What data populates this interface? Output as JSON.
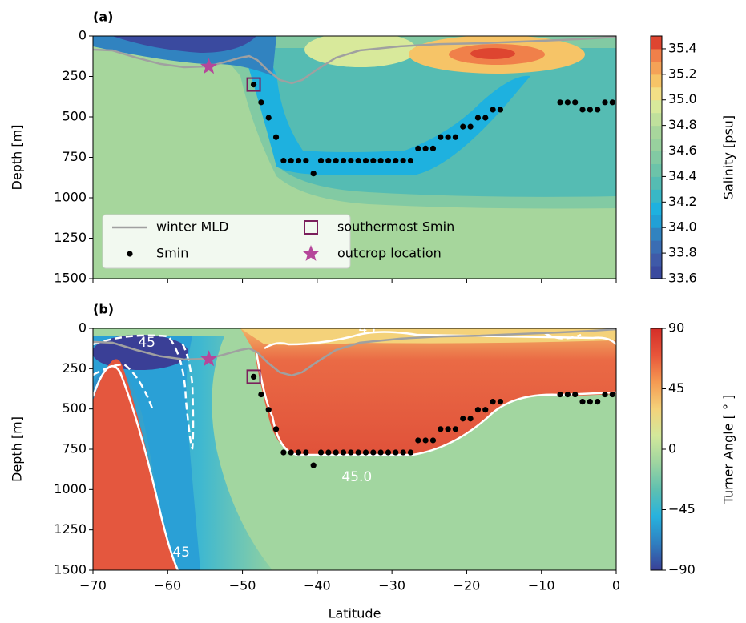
{
  "chart_data": [
    {
      "type": "contour",
      "panel_label": "(a)",
      "ylabel": "Depth [m]",
      "xlim": [
        -70,
        0
      ],
      "xticks": [
        -70,
        -60,
        -50,
        -40,
        -30,
        -20,
        -10,
        0
      ],
      "show_xtick_labels": false,
      "ylim": [
        0,
        1500
      ],
      "invert_y": true,
      "yticks": [
        0,
        250,
        500,
        750,
        1000,
        1250,
        1500
      ],
      "legend": "lower left",
      "colorbar": {
        "label": "Salinity [psu]",
        "lim": [
          33.6,
          35.5
        ],
        "discrete": true,
        "ticks": [
          33.6,
          33.8,
          {
            "value": 34.0,
            "label": "34.0"
          },
          34.2,
          34.4,
          34.6,
          34.8,
          {
            "value": 35.0,
            "label": "35.0"
          },
          35.2,
          35.4
        ],
        "colors": [
          "#3a4a9f",
          "#3f5aa8",
          "#3a6db3",
          "#3183c0",
          "#22a0d6",
          "#1eb1df",
          "#39b7c6",
          "#55bcb3",
          "#6cc3a9",
          "#82caa3",
          "#98d19e",
          "#a8d69c",
          "#c0e09c",
          "#d8e99b",
          "#f2df86",
          "#f6c467",
          "#f4a257",
          "#f0804a",
          "#de4530"
        ]
      },
      "series": [
        {
          "name": "winter MLD",
          "kind": "line",
          "color": "#a0a0a0",
          "x": [
            -70,
            -67.4,
            -64.2,
            -61.0,
            -57.8,
            -54.6,
            -52.5,
            -50.3,
            -49.1,
            -48.0,
            -46.6,
            -45.0,
            -43.4,
            -42.0,
            -40.2,
            -37.5,
            -34.3,
            -28.9,
            -23.6,
            -18.2,
            -12.9,
            -7.5,
            -3.2,
            0
          ],
          "values": [
            84,
            89,
            134,
            173,
            193,
            188,
            163,
            134,
            124,
            149,
            213,
            272,
            292,
            272,
            213,
            134,
            89,
            64,
            50,
            45,
            35,
            25,
            15,
            5
          ]
        },
        {
          "name": "Smin",
          "kind": "points",
          "color": "#000000",
          "x": [
            -48.5,
            -47.5,
            -46.5,
            -45.5,
            -44.5,
            -43.5,
            -42.5,
            -41.5,
            -40.5,
            -39.5,
            -38.5,
            -37.5,
            -36.5,
            -35.5,
            -34.5,
            -33.5,
            -32.5,
            -31.5,
            -30.5,
            -29.5,
            -28.5,
            -27.5,
            -26.5,
            -25.5,
            -24.5,
            -23.5,
            -22.5,
            -21.5,
            -20.5,
            -19.5,
            -18.5,
            -17.5,
            -16.5,
            -15.5,
            -7.5,
            -6.5,
            -5.5,
            -4.5,
            -3.5,
            -2.5,
            -1.5,
            -0.5
          ],
          "values": [
            300,
            410,
            505,
            625,
            770,
            770,
            770,
            770,
            850,
            770,
            770,
            770,
            770,
            770,
            770,
            770,
            770,
            770,
            770,
            770,
            770,
            770,
            695,
            695,
            695,
            625,
            625,
            625,
            560,
            560,
            505,
            505,
            455,
            455,
            410,
            410,
            410,
            455,
            455,
            455,
            410,
            410
          ]
        },
        {
          "name": "southermost Smin",
          "kind": "square",
          "color": "#7b1f5c",
          "x": [
            -48.5
          ],
          "values": [
            300
          ]
        },
        {
          "name": "outcrop location",
          "kind": "star",
          "color": "#b5479a",
          "x": [
            -54.5
          ],
          "values": [
            190
          ]
        }
      ]
    },
    {
      "type": "contour",
      "panel_label": "(b)",
      "ylabel": "Depth [m]",
      "xlabel": "Latitude",
      "xlim": [
        -70,
        0
      ],
      "xticks": [
        {
          "value": -70,
          "label": "−70"
        },
        {
          "value": -60,
          "label": "−60"
        },
        {
          "value": -50,
          "label": "−50"
        },
        {
          "value": -40,
          "label": "−40"
        },
        {
          "value": -30,
          "label": "−30"
        },
        {
          "value": -20,
          "label": "−20"
        },
        {
          "value": -10,
          "label": "−10"
        },
        0
      ],
      "show_xtick_labels": true,
      "ylim": [
        0,
        1500
      ],
      "invert_y": true,
      "yticks": [
        0,
        250,
        500,
        750,
        1000,
        1250,
        1500
      ],
      "colorbar": {
        "label": "Turner Angle [ ° ]",
        "lim": [
          -90,
          90
        ],
        "discrete": false,
        "ticks": [
          {
            "value": -90,
            "label": "−90"
          },
          {
            "value": -45,
            "label": "−45"
          },
          0,
          45,
          90
        ],
        "colors": [
          "#3a3f96",
          "#2f7fc0",
          "#27b2de",
          "#5fc0b0",
          "#9fd5a0",
          "#d3e89b",
          "#f4d27a",
          "#f59a52",
          "#e8553a",
          "#d42e28"
        ]
      },
      "annotations": [
        {
          "text": "45",
          "x": -62.8,
          "y": 90
        },
        {
          "text": "45",
          "x": -33.3,
          "y": 5
        },
        {
          "text": "45.0",
          "x": -34.7,
          "y": 925
        },
        {
          "text": "45",
          "x": -58.2,
          "y": 1390
        }
      ],
      "series": [
        {
          "kind": "line",
          "color": "#a0a0a0",
          "x": [
            -70,
            -67.4,
            -64.2,
            -61.0,
            -57.8,
            -54.6,
            -52.5,
            -50.3,
            -49.1,
            -48.0,
            -46.6,
            -45.0,
            -43.4,
            -42.0,
            -40.2,
            -37.5,
            -34.3,
            -28.9,
            -23.6,
            -18.2,
            -12.9,
            -7.5,
            -3.2,
            0
          ],
          "values": [
            84,
            89,
            134,
            173,
            193,
            188,
            163,
            134,
            124,
            149,
            213,
            272,
            292,
            272,
            213,
            134,
            89,
            64,
            50,
            45,
            35,
            25,
            15,
            5
          ]
        },
        {
          "kind": "points",
          "color": "#000000",
          "x": [
            -48.5,
            -47.5,
            -46.5,
            -45.5,
            -44.5,
            -43.5,
            -42.5,
            -41.5,
            -40.5,
            -39.5,
            -38.5,
            -37.5,
            -36.5,
            -35.5,
            -34.5,
            -33.5,
            -32.5,
            -31.5,
            -30.5,
            -29.5,
            -28.5,
            -27.5,
            -26.5,
            -25.5,
            -24.5,
            -23.5,
            -22.5,
            -21.5,
            -20.5,
            -19.5,
            -18.5,
            -17.5,
            -16.5,
            -15.5,
            -7.5,
            -6.5,
            -5.5,
            -4.5,
            -3.5,
            -2.5,
            -1.5,
            -0.5
          ],
          "values": [
            300,
            410,
            505,
            625,
            770,
            770,
            770,
            770,
            850,
            770,
            770,
            770,
            770,
            770,
            770,
            770,
            770,
            770,
            770,
            770,
            770,
            770,
            695,
            695,
            695,
            625,
            625,
            625,
            560,
            560,
            505,
            505,
            455,
            455,
            410,
            410,
            410,
            455,
            455,
            455,
            410,
            410
          ]
        },
        {
          "kind": "square",
          "color": "#7b1f5c",
          "x": [
            -48.5
          ],
          "values": [
            300
          ]
        },
        {
          "kind": "star",
          "color": "#b5479a",
          "x": [
            -54.5
          ],
          "values": [
            190
          ]
        }
      ]
    }
  ]
}
